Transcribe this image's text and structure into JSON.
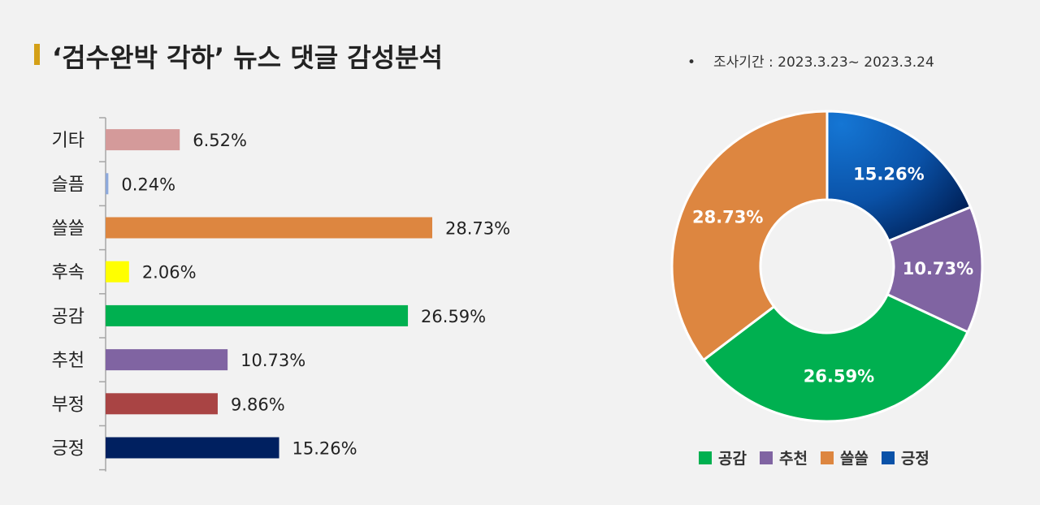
{
  "title": "‘검수완박 각하’ 뉴스 댓글 감성분석",
  "period": {
    "bullet": "•",
    "text": "조사기간 : 2023.3.23~  2023.3.24"
  },
  "chart_data": [
    {
      "type": "bar",
      "orientation": "horizontal",
      "categories": [
        "기타",
        "슬픔",
        "쓸쓸",
        "후속",
        "공감",
        "추천",
        "부정",
        "긍정"
      ],
      "values": [
        6.52,
        0.24,
        28.73,
        2.06,
        26.59,
        10.73,
        9.86,
        15.26
      ],
      "labels": [
        "6.52%",
        "0.24%",
        "28.73%",
        "2.06%",
        "26.59%",
        "10.73%",
        "9.86%",
        "15.26%"
      ],
      "colors": [
        "#d49a9a",
        "#8ea9db",
        "#dd8640",
        "#ffff00",
        "#00b050",
        "#8064a2",
        "#a94444",
        "#002060"
      ],
      "xlim": [
        0,
        30
      ]
    },
    {
      "type": "pie",
      "hole": true,
      "categories": [
        "긍정",
        "추천",
        "공감",
        "쓸쓸"
      ],
      "values": [
        15.26,
        10.73,
        26.59,
        28.73
      ],
      "labels": [
        "15.26%",
        "10.73%",
        "26.59%",
        "28.73%"
      ],
      "colors": [
        "#0a52a8",
        "#8064a2",
        "#00b050",
        "#dd8640"
      ],
      "legend": [
        {
          "label": "공감",
          "color": "#00b050"
        },
        {
          "label": "추천",
          "color": "#8064a2"
        },
        {
          "label": "쓸쓸",
          "color": "#dd8640"
        },
        {
          "label": "긍정",
          "color": "#0a52a8"
        }
      ],
      "legend_position": "bottom"
    }
  ]
}
